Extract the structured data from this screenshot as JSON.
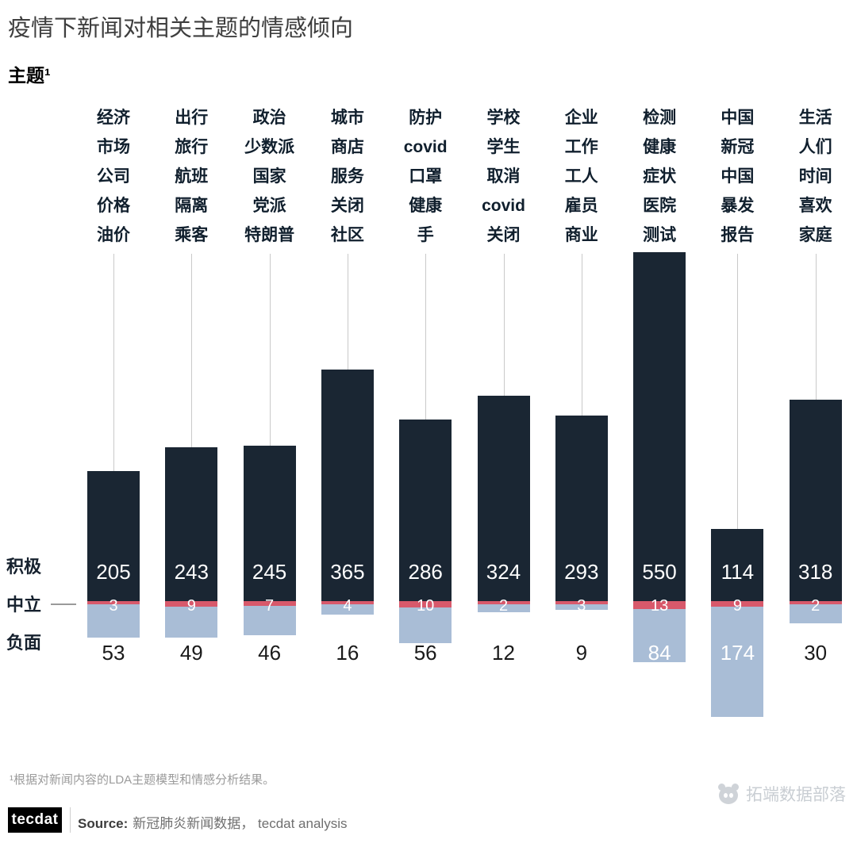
{
  "page": {
    "title": "疫情下新闻对相关主题的情感倾向",
    "subtitle": "主题¹"
  },
  "axis": {
    "positive": "积极",
    "neutral": "中立",
    "negative": "负面"
  },
  "colors": {
    "positive": "#1a2633",
    "neutral": "#d8596b",
    "negative": "#a9bdd6",
    "leader": "#c9c9c9"
  },
  "footnote": "¹根据对新闻内容的LDA主题模型和情感分析结果。",
  "footer": {
    "logo": "tecdat",
    "source_label": "Source:",
    "source_text": "新冠肺炎新闻数据， tecdat analysis"
  },
  "watermark": {
    "text": "拓端数据部落"
  },
  "chart_data": {
    "type": "bar",
    "stacked": true,
    "orientation": "vertical",
    "title": "疫情下新闻对相关主题的情感倾向",
    "series_labels": [
      "积极",
      "中立",
      "负面"
    ],
    "legend_position": "left",
    "grid": false,
    "topics": [
      {
        "keywords": [
          "经济",
          "市场",
          "公司",
          "价格",
          "油价"
        ],
        "positive": 205,
        "neutral": 3,
        "negative": 53
      },
      {
        "keywords": [
          "出行",
          "旅行",
          "航班",
          "隔离",
          "乘客"
        ],
        "positive": 243,
        "neutral": 9,
        "negative": 49
      },
      {
        "keywords": [
          "政治",
          "少数派",
          "国家",
          "党派",
          "特朗普"
        ],
        "positive": 245,
        "neutral": 7,
        "negative": 46
      },
      {
        "keywords": [
          "城市",
          "商店",
          "服务",
          "关闭",
          "社区"
        ],
        "positive": 365,
        "neutral": 4,
        "negative": 16
      },
      {
        "keywords": [
          "防护",
          "covid",
          "口罩",
          "健康",
          "手"
        ],
        "positive": 286,
        "neutral": 10,
        "negative": 56
      },
      {
        "keywords": [
          "学校",
          "学生",
          "取消",
          "covid",
          "关闭"
        ],
        "positive": 324,
        "neutral": 2,
        "negative": 12
      },
      {
        "keywords": [
          "企业",
          "工作",
          "工人",
          "雇员",
          "商业"
        ],
        "positive": 293,
        "neutral": 3,
        "negative": 9
      },
      {
        "keywords": [
          "检测",
          "健康",
          "症状",
          "医院",
          "测试"
        ],
        "positive": 550,
        "neutral": 13,
        "negative": 84
      },
      {
        "keywords": [
          "中国",
          "新冠",
          "中国",
          "暴发",
          "报告"
        ],
        "positive": 114,
        "neutral": 9,
        "negative": 174
      },
      {
        "keywords": [
          "生活",
          "人们",
          "时间",
          "喜欢",
          "家庭"
        ],
        "positive": 318,
        "neutral": 2,
        "negative": 30
      }
    ]
  }
}
